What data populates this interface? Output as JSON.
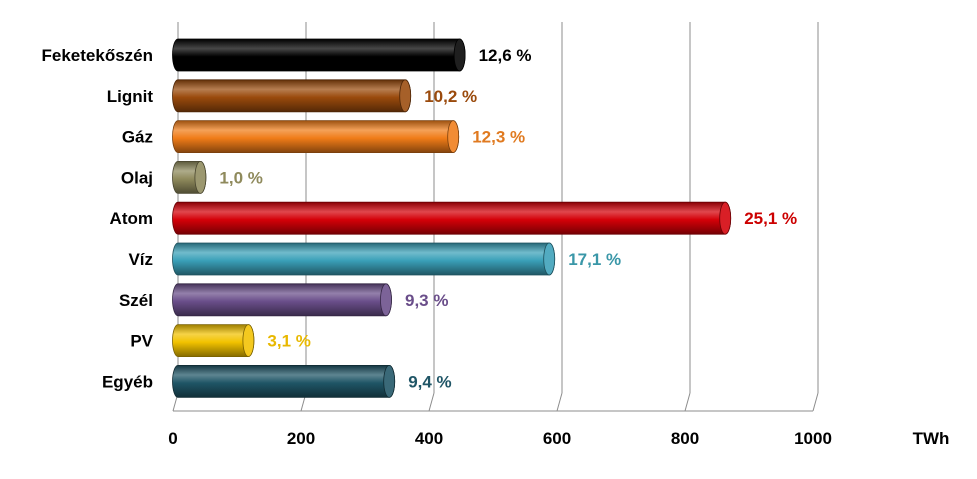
{
  "chart_data": {
    "type": "bar",
    "orientation": "horizontal",
    "style": "3d-cylinder",
    "categories": [
      "Feketekőszén",
      "Lignit",
      "Gáz",
      "Olaj",
      "Atom",
      "Víz",
      "Szél",
      "PV",
      "Egyéb"
    ],
    "values": [
      440,
      355,
      430,
      35,
      855,
      580,
      325,
      110,
      330
    ],
    "data_labels": [
      "12,6 %",
      "10,2 %",
      "12,3 %",
      "1,0 %",
      "25,1 %",
      "17,1 %",
      "9,3 %",
      "3,1 %",
      "9,4 %"
    ],
    "colors": [
      "#000000",
      "#9a4a0c",
      "#f07c18",
      "#8f8a5c",
      "#d40008",
      "#3aa0b8",
      "#6a4e8a",
      "#f2c200",
      "#1f5566"
    ],
    "label_colors": [
      "#000000",
      "#9a4a0c",
      "#e07a20",
      "#8f8a5c",
      "#cc0000",
      "#3a97a8",
      "#6a4e8a",
      "#e8b800",
      "#1f5566"
    ],
    "x_ticks": [
      0,
      200,
      400,
      600,
      800,
      1000
    ],
    "x_unit": "TWh",
    "xlim": [
      0,
      1000
    ],
    "grid": true
  }
}
